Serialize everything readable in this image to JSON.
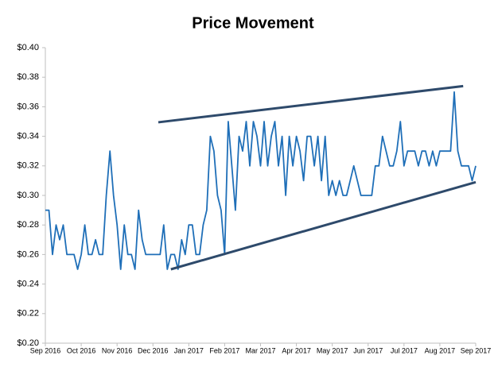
{
  "chart_data": {
    "type": "line",
    "title": "Price Movement",
    "categories": [
      "Sep 2016",
      null,
      null,
      null,
      null,
      null,
      null,
      null,
      null,
      null,
      "Oct 2016",
      null,
      null,
      null,
      null,
      null,
      null,
      null,
      null,
      null,
      "Nov 2016",
      null,
      null,
      null,
      null,
      null,
      null,
      null,
      null,
      null,
      "Dec 2016",
      null,
      null,
      null,
      null,
      null,
      null,
      null,
      null,
      null,
      "Jan 2017",
      null,
      null,
      null,
      null,
      null,
      null,
      null,
      null,
      null,
      "Feb 2017",
      null,
      null,
      null,
      null,
      null,
      null,
      null,
      null,
      null,
      "Mar 2017",
      null,
      null,
      null,
      null,
      null,
      null,
      null,
      null,
      null,
      "Apr 2017",
      null,
      null,
      null,
      null,
      null,
      null,
      null,
      null,
      null,
      "May 2017",
      null,
      null,
      null,
      null,
      null,
      null,
      null,
      null,
      null,
      "Jun 2017",
      null,
      null,
      null,
      null,
      null,
      null,
      null,
      null,
      null,
      "Jul 2017",
      null,
      null,
      null,
      null,
      null,
      null,
      null,
      null,
      null,
      "Aug 2017",
      null,
      null,
      null,
      null,
      null,
      null,
      null,
      null,
      null,
      "Sep 2017"
    ],
    "series": [
      {
        "name": "Price",
        "color": "#1f6fb8",
        "values": [
          0.29,
          0.29,
          0.26,
          0.28,
          0.27,
          0.28,
          0.26,
          0.26,
          0.26,
          0.25,
          0.26,
          0.28,
          0.26,
          0.26,
          0.27,
          0.26,
          0.26,
          0.3,
          0.33,
          0.3,
          0.28,
          0.25,
          0.28,
          0.26,
          0.26,
          0.25,
          0.29,
          0.27,
          0.26,
          0.26,
          0.26,
          0.26,
          0.26,
          0.28,
          0.25,
          0.26,
          0.26,
          0.25,
          0.27,
          0.26,
          0.28,
          0.28,
          0.26,
          0.26,
          0.28,
          0.29,
          0.34,
          0.33,
          0.3,
          0.29,
          0.26,
          0.35,
          0.32,
          0.29,
          0.34,
          0.33,
          0.35,
          0.32,
          0.35,
          0.34,
          0.32,
          0.35,
          0.32,
          0.34,
          0.35,
          0.32,
          0.34,
          0.3,
          0.34,
          0.32,
          0.34,
          0.33,
          0.31,
          0.34,
          0.34,
          0.32,
          0.34,
          0.31,
          0.34,
          0.3,
          0.31,
          0.3,
          0.31,
          0.3,
          0.3,
          0.31,
          0.32,
          0.31,
          0.3,
          0.3,
          0.3,
          0.3,
          0.32,
          0.32,
          0.34,
          0.33,
          0.32,
          0.32,
          0.33,
          0.35,
          0.32,
          0.33,
          0.33,
          0.33,
          0.32,
          0.33,
          0.33,
          0.32,
          0.33,
          0.32,
          0.33,
          0.33,
          0.33,
          0.33,
          0.37,
          0.33,
          0.32,
          0.32,
          0.32,
          0.31,
          0.32
        ]
      }
    ],
    "trend_lines": [
      {
        "color": "#2e4a6b",
        "x": [
          31.5,
          116.5
        ],
        "values": [
          0.3495,
          0.374
        ]
      },
      {
        "color": "#2e4a6b",
        "x": [
          35,
          120
        ],
        "values": [
          0.25,
          0.309
        ]
      }
    ],
    "ylim": [
      0.2,
      0.4
    ],
    "yticks": [
      {
        "value": 0.2,
        "label": "$0.20"
      },
      {
        "value": 0.22,
        "label": "$0.22"
      },
      {
        "value": 0.24,
        "label": "$0.24"
      },
      {
        "value": 0.26,
        "label": "$0.26"
      },
      {
        "value": 0.28,
        "label": "$0.28"
      },
      {
        "value": 0.3,
        "label": "$0.30"
      },
      {
        "value": 0.32,
        "label": "$0.32"
      },
      {
        "value": 0.34,
        "label": "$0.34"
      },
      {
        "value": 0.36,
        "label": "$0.36"
      },
      {
        "value": 0.38,
        "label": "$0.38"
      },
      {
        "value": 0.4,
        "label": "$0.40"
      }
    ],
    "grid": false
  }
}
